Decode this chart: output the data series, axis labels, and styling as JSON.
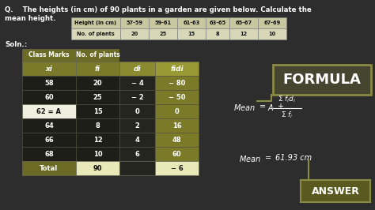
{
  "bg_color": "#2d2d2d",
  "question_line1": "Q.    The heights (in cm) of 90 plants in a garden are given below. Calculate the",
  "question_line2": "mean height.",
  "soln_text": "Soln.:",
  "header_table": {
    "cols": [
      "Height (in cm)",
      "57-59",
      "59-61",
      "61-63",
      "63-65",
      "65-67",
      "67-69"
    ],
    "row": [
      "No. of plants",
      "20",
      "25",
      "15",
      "8",
      "12",
      "10"
    ]
  },
  "main_table": {
    "top_headers": [
      "Class Marks",
      "No. of plants"
    ],
    "sub_headers": [
      "xi",
      "fi",
      "di",
      "fidi"
    ],
    "rows": [
      [
        "58",
        "20",
        "− 4",
        "− 80"
      ],
      [
        "60",
        "25",
        "− 2",
        "− 50"
      ],
      [
        "62 = A",
        "15",
        "0",
        "0"
      ],
      [
        "64",
        "8",
        "2",
        "16"
      ],
      [
        "66",
        "12",
        "4",
        "48"
      ],
      [
        "68",
        "10",
        "6",
        "60"
      ]
    ],
    "total_row": [
      "Total",
      "90",
      "",
      "− 6"
    ]
  },
  "formula_label": "FORMULA",
  "answer_text": "Mean  =   61.93 cm",
  "answer_label": "ANSWER",
  "olive_dark": "#6b6b25",
  "olive_mid": "#7a7a2a",
  "cream_light": "#e8e8b8",
  "dark_cell": "#252520",
  "darker_cell": "#1e1e18",
  "formula_box_bg": "#454530",
  "formula_box_border": "#8a8a45",
  "answer_box_bg": "#5a5a20",
  "answer_box_border": "#8a8a45",
  "white_cell": "#f0f0e0"
}
